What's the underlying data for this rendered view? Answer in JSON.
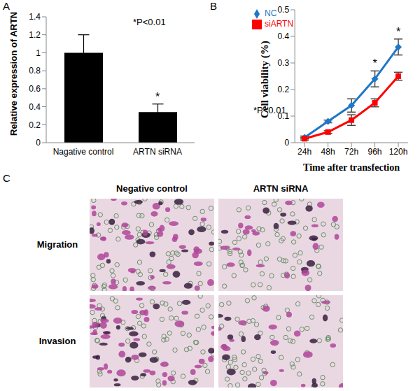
{
  "chart_data": [
    {
      "panel": "A",
      "type": "bar",
      "categories": [
        "Nagative control",
        "ARTN siRNA"
      ],
      "values": [
        1.0,
        0.34
      ],
      "errors": [
        0.2,
        0.09
      ],
      "color": "#000000",
      "ylabel": "Relative expression of ARTN",
      "ylim": [
        0,
        1.4
      ],
      "yticks": [
        0,
        0.2,
        0.4,
        0.6,
        0.8,
        1,
        1.2,
        1.4
      ],
      "grid": false,
      "significance": [
        null,
        "*"
      ],
      "annotations": [
        "*P<0.01"
      ]
    },
    {
      "panel": "B",
      "type": "line",
      "categories": [
        "24h",
        "48h",
        "72h",
        "96h",
        "120h"
      ],
      "series": [
        {
          "name": "NC",
          "color": "#1f77c8",
          "marker": "diamond",
          "values": [
            0.02,
            0.08,
            0.14,
            0.24,
            0.36
          ],
          "errors": [
            0.005,
            0.005,
            0.025,
            0.03,
            0.03
          ]
        },
        {
          "name": "siARTN",
          "color": "#ff0000",
          "marker": "square",
          "values": [
            0.015,
            0.04,
            0.085,
            0.15,
            0.25
          ],
          "errors": [
            0.005,
            0.005,
            0.02,
            0.015,
            0.015
          ]
        }
      ],
      "xlabel": "Time after transfection",
      "ylabel": "Cell viability (%)",
      "ylim": [
        0,
        0.5
      ],
      "yticks": [
        0,
        0.1,
        0.2,
        0.3,
        0.4,
        0.5
      ],
      "grid": false,
      "legend": "upper left",
      "significance": [
        null,
        null,
        null,
        "*",
        "*"
      ],
      "annotations": [
        "*P<0.01"
      ]
    }
  ],
  "panel_c": {
    "panel": "C",
    "columns": [
      "Negative control",
      "ARTN siRNA"
    ],
    "rows": [
      "Migration",
      "Invasion"
    ]
  }
}
